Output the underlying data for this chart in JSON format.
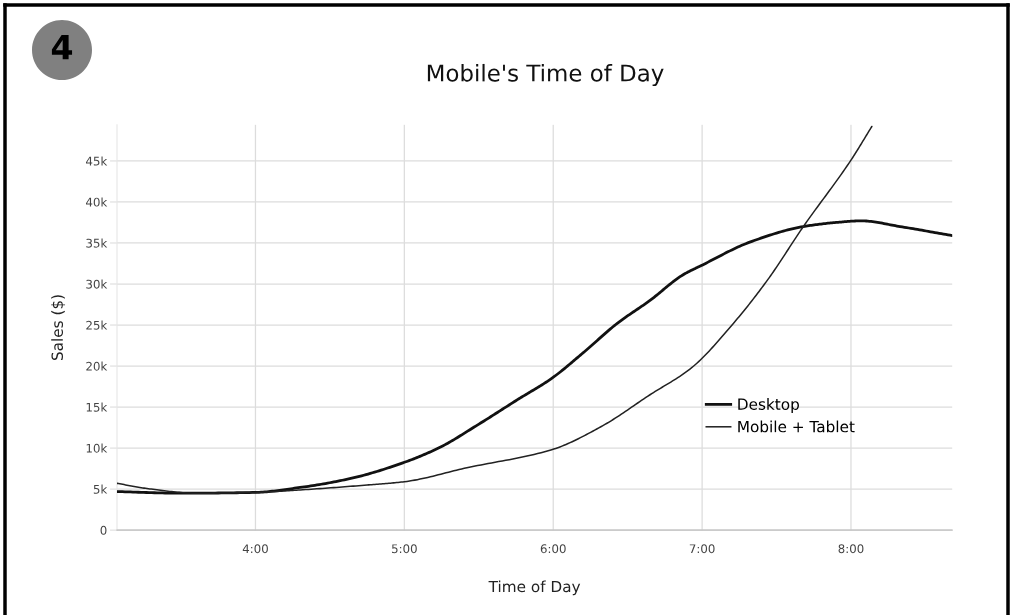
{
  "chart_data": {
    "type": "line",
    "title": "Mobile's Time of Day",
    "xlabel": "Time of Day",
    "ylabel": "Sales ($)",
    "annotations": [
      "4"
    ],
    "series": [
      {
        "name": "Desktop",
        "color": "#111111",
        "x": [
          3.07,
          3.5,
          4.0,
          4.3,
          4.64,
          4.99,
          5.24,
          5.49,
          5.76,
          5.99,
          6.2,
          6.43,
          6.65,
          6.87,
          7.0,
          7.32,
          7.68,
          7.9,
          8.07,
          8.33,
          8.68
        ],
        "values": [
          4700,
          4500,
          4600,
          5200,
          6300,
          8200,
          10100,
          12800,
          15900,
          18500,
          21600,
          25200,
          28000,
          31100,
          32300,
          35100,
          37000,
          37500,
          37700,
          37000,
          35900
        ]
      },
      {
        "name": "Mobile + Tablet",
        "color": "#222222",
        "x": [
          3.07,
          3.3,
          3.6,
          4.0,
          4.3,
          4.75,
          5.0,
          5.42,
          5.99,
          6.32,
          6.65,
          6.93,
          7.21,
          7.44,
          7.68,
          8.0,
          8.14
        ],
        "values": [
          5700,
          5000,
          4500,
          4600,
          4900,
          5500,
          5900,
          7600,
          9800,
          12600,
          16500,
          19800,
          25200,
          30500,
          37000,
          45100,
          49200
        ]
      }
    ],
    "xlim": [
      3.07,
      8.68
    ],
    "xticks": [
      {
        "value": 4,
        "label": "4:00"
      },
      {
        "value": 5,
        "label": "5:00"
      },
      {
        "value": 6,
        "label": "6:00"
      },
      {
        "value": 7,
        "label": "7:00"
      },
      {
        "value": 8,
        "label": "8:00"
      }
    ],
    "ylim": [
      0,
      49400
    ],
    "yticks": [
      0,
      {
        "value": 5000,
        "label": "5k"
      },
      {
        "value": 10000,
        "label": "10k"
      },
      {
        "value": 15000,
        "label": "15k"
      },
      {
        "value": 20000,
        "label": "20k"
      },
      {
        "value": 25000,
        "label": "25k"
      },
      {
        "value": 30000,
        "label": "30k"
      },
      {
        "value": 35000,
        "label": "35k"
      },
      {
        "value": 40000,
        "label": "40k"
      },
      {
        "value": 45000,
        "label": "45k"
      }
    ],
    "grid": true,
    "legend": "lower right",
    "marker": "none",
    "line_style": "solid"
  }
}
